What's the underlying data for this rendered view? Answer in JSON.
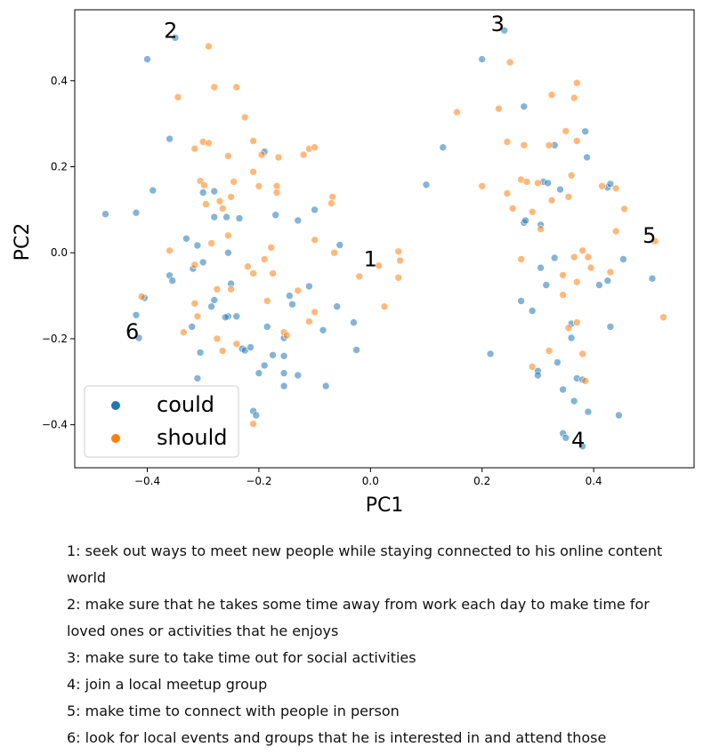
{
  "chart_data": {
    "type": "scatter",
    "xlabel": "PC1",
    "ylabel": "PC2",
    "xlim": [
      -0.53,
      0.58
    ],
    "ylim": [
      -0.5,
      0.565
    ],
    "xticks": [
      -0.4,
      -0.2,
      0.0,
      0.2,
      0.4
    ],
    "xtick_labels": [
      "−0.4",
      "−0.2",
      "0.0",
      "0.2",
      "0.4"
    ],
    "yticks": [
      -0.4,
      -0.2,
      0.0,
      0.2,
      0.4
    ],
    "ytick_labels": [
      "−0.4",
      "−0.2",
      "0.0",
      "0.2",
      "0.4"
    ],
    "grid": false,
    "legend_position": "bottom-left",
    "series": [
      {
        "name": "could",
        "color": "#1f77b4",
        "points": [
          [
            -0.35,
            0.5
          ],
          [
            -0.4,
            0.45
          ],
          [
            -0.36,
            0.265
          ],
          [
            -0.39,
            0.145
          ],
          [
            -0.475,
            0.09
          ],
          [
            -0.42,
            0.093
          ],
          [
            -0.33,
            0.033
          ],
          [
            -0.31,
            0.017
          ],
          [
            -0.28,
            0.083
          ],
          [
            -0.28,
            0.143
          ],
          [
            -0.3,
            0.14
          ],
          [
            -0.258,
            0.083
          ],
          [
            -0.235,
            0.08
          ],
          [
            -0.19,
            0.235
          ],
          [
            -0.17,
            0.088
          ],
          [
            -0.13,
            0.075
          ],
          [
            -0.1,
            0.1
          ],
          [
            -0.055,
            0.018
          ],
          [
            -0.318,
            -0.037
          ],
          [
            -0.3,
            -0.022
          ],
          [
            -0.255,
            0.0
          ],
          [
            -0.36,
            -0.053
          ],
          [
            -0.355,
            -0.065
          ],
          [
            -0.405,
            -0.105
          ],
          [
            -0.25,
            -0.072
          ],
          [
            -0.28,
            -0.11
          ],
          [
            -0.285,
            -0.125
          ],
          [
            -0.255,
            -0.148
          ],
          [
            -0.24,
            -0.148
          ],
          [
            -0.26,
            -0.15
          ],
          [
            -0.32,
            -0.172
          ],
          [
            -0.305,
            -0.232
          ],
          [
            -0.31,
            -0.292
          ],
          [
            -0.23,
            -0.223
          ],
          [
            -0.225,
            -0.227
          ],
          [
            -0.215,
            -0.22
          ],
          [
            -0.2,
            -0.28
          ],
          [
            -0.19,
            -0.262
          ],
          [
            -0.175,
            -0.238
          ],
          [
            -0.155,
            -0.24
          ],
          [
            -0.155,
            -0.28
          ],
          [
            -0.13,
            -0.285
          ],
          [
            -0.155,
            -0.31
          ],
          [
            -0.155,
            -0.198
          ],
          [
            -0.185,
            -0.172
          ],
          [
            -0.145,
            -0.1
          ],
          [
            -0.14,
            -0.12
          ],
          [
            -0.11,
            -0.078
          ],
          [
            -0.085,
            -0.18
          ],
          [
            -0.06,
            -0.125
          ],
          [
            -0.03,
            -0.162
          ],
          [
            -0.025,
            -0.226
          ],
          [
            -0.08,
            -0.31
          ],
          [
            -0.21,
            -0.368
          ],
          [
            -0.205,
            -0.378
          ],
          [
            -0.42,
            -0.145
          ],
          [
            -0.415,
            -0.198
          ],
          [
            0.24,
            0.517
          ],
          [
            0.2,
            0.45
          ],
          [
            0.13,
            0.245
          ],
          [
            0.1,
            0.158
          ],
          [
            0.275,
            0.34
          ],
          [
            0.33,
            0.25
          ],
          [
            0.385,
            0.282
          ],
          [
            0.388,
            0.222
          ],
          [
            0.31,
            0.165
          ],
          [
            0.318,
            0.162
          ],
          [
            0.34,
            0.147
          ],
          [
            0.425,
            0.152
          ],
          [
            0.43,
            0.16
          ],
          [
            0.275,
            0.07
          ],
          [
            0.278,
            0.075
          ],
          [
            0.305,
            0.065
          ],
          [
            0.33,
            -0.012
          ],
          [
            0.305,
            -0.035
          ],
          [
            0.41,
            -0.075
          ],
          [
            0.425,
            -0.065
          ],
          [
            0.453,
            -0.015
          ],
          [
            0.505,
            -0.06
          ],
          [
            0.315,
            -0.075
          ],
          [
            0.27,
            -0.112
          ],
          [
            0.29,
            -0.135
          ],
          [
            0.3,
            -0.275
          ],
          [
            0.3,
            -0.285
          ],
          [
            0.335,
            -0.255
          ],
          [
            0.345,
            -0.318
          ],
          [
            0.37,
            -0.292
          ],
          [
            0.38,
            -0.295
          ],
          [
            0.365,
            -0.345
          ],
          [
            0.39,
            -0.37
          ],
          [
            0.36,
            -0.198
          ],
          [
            0.36,
            -0.165
          ],
          [
            0.43,
            -0.172
          ],
          [
            0.445,
            -0.378
          ],
          [
            0.215,
            -0.235
          ],
          [
            0.345,
            -0.42
          ],
          [
            0.35,
            -0.43
          ],
          [
            0.38,
            -0.45
          ]
        ]
      },
      {
        "name": "should",
        "color": "#ff7f0e",
        "points": [
          [
            -0.29,
            0.48
          ],
          [
            -0.345,
            0.362
          ],
          [
            -0.28,
            0.385
          ],
          [
            -0.24,
            0.385
          ],
          [
            -0.225,
            0.315
          ],
          [
            -0.3,
            0.258
          ],
          [
            -0.29,
            0.255
          ],
          [
            -0.315,
            0.242
          ],
          [
            -0.21,
            0.26
          ],
          [
            -0.195,
            0.228
          ],
          [
            -0.165,
            0.222
          ],
          [
            -0.255,
            0.225
          ],
          [
            -0.21,
            0.188
          ],
          [
            -0.245,
            0.165
          ],
          [
            -0.305,
            0.167
          ],
          [
            -0.298,
            0.157
          ],
          [
            -0.2,
            0.155
          ],
          [
            -0.168,
            0.155
          ],
          [
            -0.168,
            0.14
          ],
          [
            -0.25,
            0.13
          ],
          [
            -0.27,
            0.12
          ],
          [
            -0.295,
            0.113
          ],
          [
            -0.265,
            0.103
          ],
          [
            -0.12,
            0.228
          ],
          [
            -0.11,
            0.242
          ],
          [
            -0.1,
            0.245
          ],
          [
            -0.068,
            0.13
          ],
          [
            -0.07,
            0.115
          ],
          [
            -0.255,
            0.04
          ],
          [
            -0.285,
            0.022
          ],
          [
            -0.178,
            0.012
          ],
          [
            -0.1,
            0.03
          ],
          [
            -0.36,
            0.005
          ],
          [
            -0.19,
            -0.015
          ],
          [
            -0.22,
            -0.032
          ],
          [
            -0.175,
            -0.048
          ],
          [
            -0.21,
            -0.048
          ],
          [
            -0.25,
            -0.085
          ],
          [
            -0.275,
            -0.085
          ],
          [
            -0.315,
            -0.028
          ],
          [
            -0.315,
            -0.118
          ],
          [
            -0.31,
            -0.148
          ],
          [
            -0.185,
            -0.112
          ],
          [
            -0.13,
            -0.088
          ],
          [
            -0.1,
            -0.138
          ],
          [
            -0.11,
            -0.16
          ],
          [
            -0.155,
            -0.185
          ],
          [
            -0.15,
            -0.192
          ],
          [
            -0.335,
            -0.185
          ],
          [
            -0.275,
            -0.2
          ],
          [
            -0.265,
            -0.228
          ],
          [
            -0.24,
            -0.212
          ],
          [
            -0.41,
            -0.102
          ],
          [
            -0.21,
            -0.398
          ],
          [
            -0.065,
            0.0
          ],
          [
            -0.02,
            -0.055
          ],
          [
            0.015,
            -0.03
          ],
          [
            0.025,
            -0.125
          ],
          [
            0.05,
            0.003
          ],
          [
            0.053,
            -0.018
          ],
          [
            0.05,
            -0.058
          ],
          [
            0.155,
            0.327
          ],
          [
            0.25,
            0.443
          ],
          [
            0.23,
            0.335
          ],
          [
            0.245,
            0.258
          ],
          [
            0.275,
            0.25
          ],
          [
            0.32,
            0.25
          ],
          [
            0.325,
            0.367
          ],
          [
            0.37,
            0.395
          ],
          [
            0.365,
            0.36
          ],
          [
            0.35,
            0.283
          ],
          [
            0.37,
            0.26
          ],
          [
            0.36,
            0.18
          ],
          [
            0.27,
            0.17
          ],
          [
            0.28,
            0.165
          ],
          [
            0.2,
            0.155
          ],
          [
            0.245,
            0.138
          ],
          [
            0.255,
            0.103
          ],
          [
            0.29,
            0.095
          ],
          [
            0.3,
            0.162
          ],
          [
            0.325,
            0.122
          ],
          [
            0.355,
            0.13
          ],
          [
            0.415,
            0.155
          ],
          [
            0.44,
            0.15
          ],
          [
            0.455,
            0.102
          ],
          [
            0.44,
            0.05
          ],
          [
            0.51,
            0.027
          ],
          [
            0.305,
            0.055
          ],
          [
            0.27,
            -0.015
          ],
          [
            0.365,
            -0.01
          ],
          [
            0.38,
            0.005
          ],
          [
            0.39,
            -0.01
          ],
          [
            0.395,
            -0.035
          ],
          [
            0.345,
            -0.052
          ],
          [
            0.37,
            -0.068
          ],
          [
            0.345,
            -0.098
          ],
          [
            0.43,
            -0.045
          ],
          [
            0.525,
            -0.15
          ],
          [
            0.37,
            -0.162
          ],
          [
            0.355,
            -0.175
          ],
          [
            0.38,
            -0.235
          ],
          [
            0.29,
            -0.265
          ],
          [
            0.32,
            -0.228
          ],
          [
            0.385,
            -0.298
          ]
        ]
      }
    ],
    "annotations": [
      {
        "text": "2",
        "x": -0.358,
        "y": 0.516
      },
      {
        "text": "3",
        "x": 0.228,
        "y": 0.532
      },
      {
        "text": "1",
        "x": 0.0,
        "y": -0.015
      },
      {
        "text": "5",
        "x": 0.5,
        "y": 0.04
      },
      {
        "text": "6",
        "x": -0.427,
        "y": -0.184
      },
      {
        "text": "4",
        "x": 0.372,
        "y": -0.436
      }
    ],
    "legend": [
      {
        "label": "could",
        "color": "#1f77b4"
      },
      {
        "label": "should",
        "color": "#ff7f0e"
      }
    ]
  },
  "notes": [
    "1: seek out ways to meet new people while staying connected to his online content world",
    "2: make sure that he takes some time away from work each day to make time for loved ones or activities that he enjoys",
    "3: make sure to take time out for social activities",
    "4: join a local meetup group",
    "5: make time to connect with people in person",
    "6: look for local events and groups that he is interested in and attend those"
  ]
}
